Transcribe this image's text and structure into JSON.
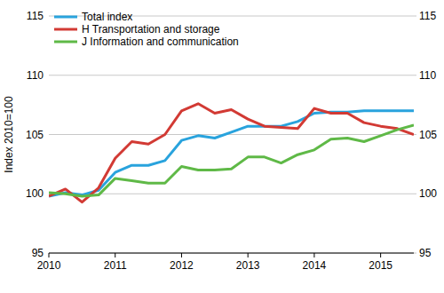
{
  "chart_data": {
    "type": "line",
    "y_label": "Index 2010=100",
    "x": [
      2010,
      2010.25,
      2010.5,
      2010.75,
      2011,
      2011.25,
      2011.5,
      2011.75,
      2012,
      2012.25,
      2012.5,
      2012.75,
      2013,
      2013.25,
      2013.5,
      2013.75,
      2014,
      2014.25,
      2014.5,
      2014.75,
      2015,
      2015.25,
      2015.5
    ],
    "xlim": [
      2010,
      2015.5
    ],
    "xticks": [
      2010,
      2011,
      2012,
      2013,
      2014,
      2015
    ],
    "ylim": [
      95,
      115
    ],
    "yticks": [
      95,
      100,
      105,
      110,
      115
    ],
    "y2lim": [
      95,
      115
    ],
    "y2ticks": [
      95,
      100,
      105,
      110,
      115
    ],
    "grid": true,
    "legend": "top-left",
    "series": [
      {
        "name": "Total index",
        "color": "#29a3dd",
        "values": [
          99.8,
          100.1,
          99.9,
          100.3,
          101.8,
          102.4,
          102.4,
          102.8,
          104.5,
          104.9,
          104.7,
          105.2,
          105.7,
          105.7,
          105.7,
          106.1,
          106.8,
          106.9,
          106.9,
          107.0,
          107.0,
          107.0,
          107.0
        ]
      },
      {
        "name": "H Transportation and storage",
        "color": "#d23a34",
        "values": [
          99.8,
          100.4,
          99.3,
          100.5,
          103.0,
          104.4,
          104.2,
          105.0,
          107.0,
          107.6,
          106.8,
          107.1,
          106.3,
          105.7,
          105.6,
          105.5,
          107.2,
          106.8,
          106.8,
          106.0,
          105.7,
          105.5,
          105.0
        ]
      },
      {
        "name": "J Information and communication",
        "color": "#5fb947",
        "values": [
          100.1,
          100.0,
          99.8,
          99.9,
          101.3,
          101.1,
          100.9,
          100.9,
          102.3,
          102.0,
          102.0,
          102.1,
          103.1,
          103.1,
          102.6,
          103.3,
          103.7,
          104.6,
          104.7,
          104.4,
          104.9,
          105.4,
          105.8
        ]
      }
    ]
  }
}
